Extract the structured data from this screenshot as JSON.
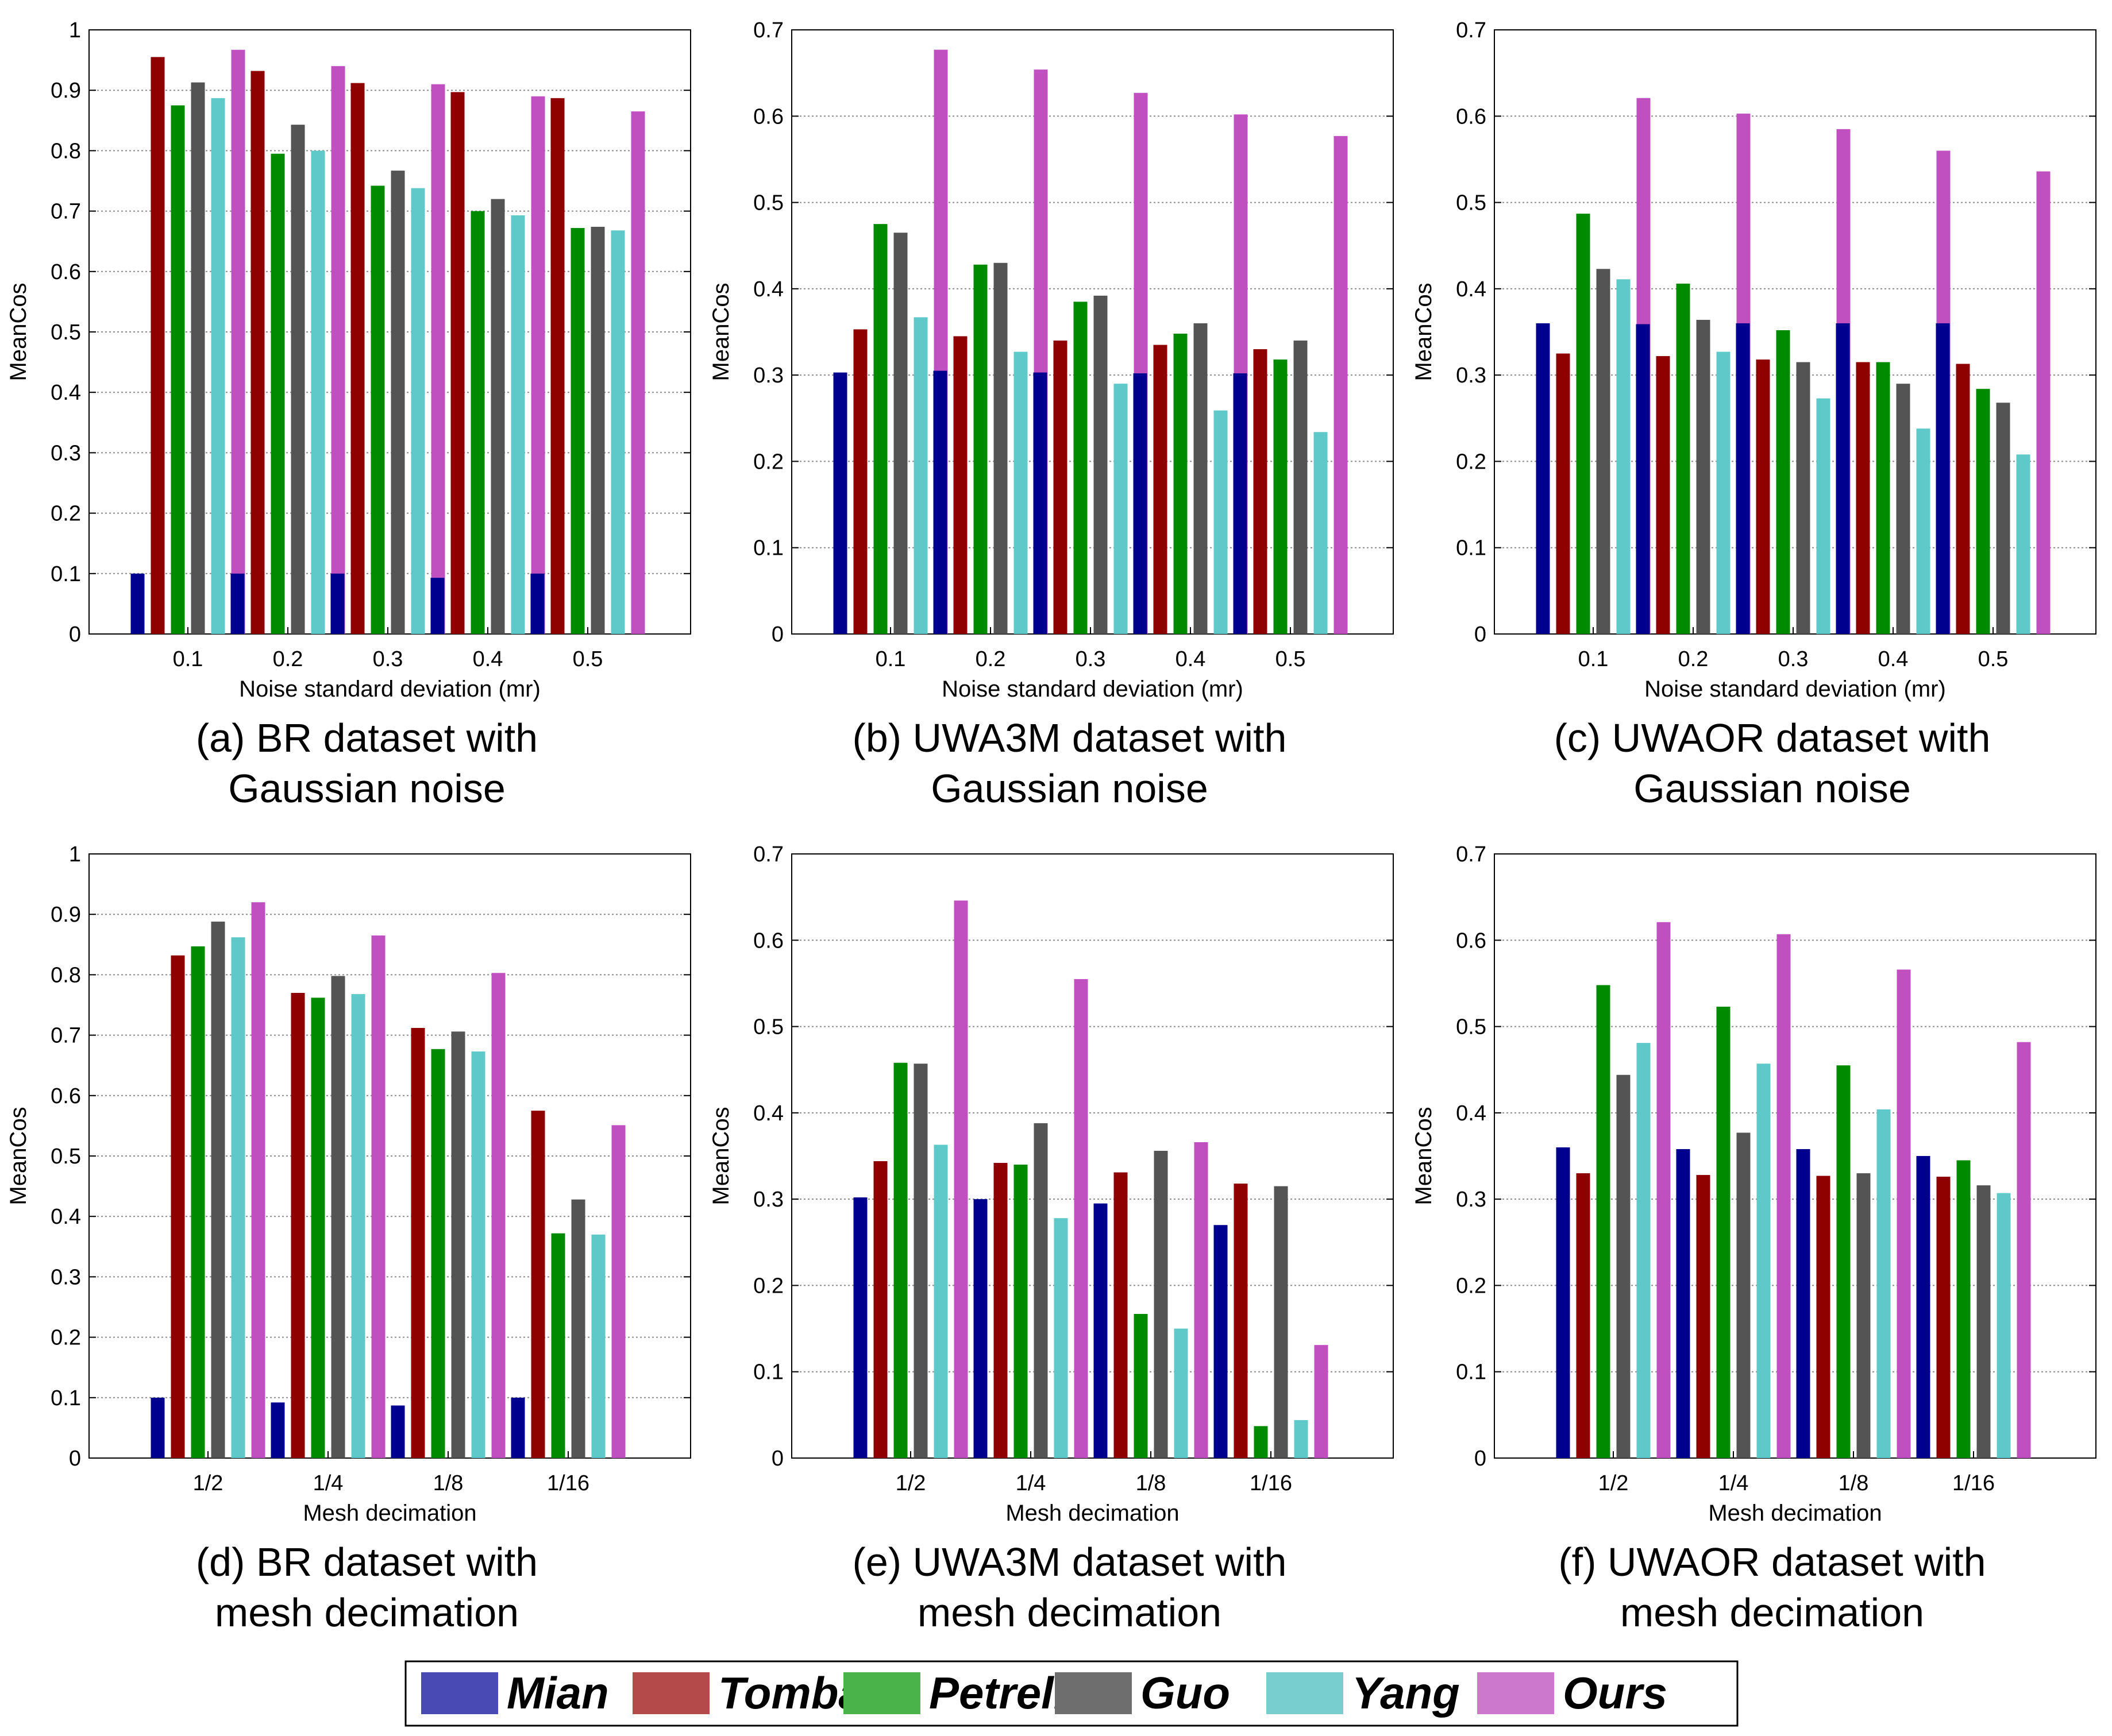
{
  "legend": [
    {
      "label": "Mian",
      "color": "#4a4ab4",
      "bar_color": "#00008f"
    },
    {
      "label": "Tombari",
      "color": "#b44a4a",
      "bar_color": "#8f0000"
    },
    {
      "label": "Petrelli",
      "color": "#4ab44a",
      "bar_color": "#008a00"
    },
    {
      "label": "Guo",
      "color": "#6e6e6e",
      "bar_color": "#545454"
    },
    {
      "label": "Yang",
      "color": "#78cece",
      "bar_color": "#5fc8c8"
    },
    {
      "label": "Ours",
      "color": "#cc78cc",
      "bar_color": "#c04fc0"
    }
  ],
  "chart_data": [
    {
      "type": "bar",
      "caption_lines": [
        "(a) BR dataset with",
        "Gaussian noise"
      ],
      "xlabel": "Noise standard deviation (mr)",
      "ylabel": "MeanCos",
      "ylim": [
        0,
        1
      ],
      "yticks": [
        "0",
        "0.1",
        "0.2",
        "0.3",
        "0.4",
        "0.5",
        "0.6",
        "0.7",
        "0.8",
        "0.9",
        "1"
      ],
      "grid": true,
      "categories": [
        "0.1",
        "0.2",
        "0.3",
        "0.4",
        "0.5"
      ],
      "series": [
        {
          "name": "Mian",
          "values": [
            0.1,
            0.1,
            0.1,
            0.093,
            0.1
          ]
        },
        {
          "name": "Tombari",
          "values": [
            0.955,
            0.932,
            0.912,
            0.897,
            0.887
          ]
        },
        {
          "name": "Petrelli",
          "values": [
            0.875,
            0.795,
            0.742,
            0.7,
            0.672
          ]
        },
        {
          "name": "Guo",
          "values": [
            0.913,
            0.843,
            0.767,
            0.72,
            0.674
          ]
        },
        {
          "name": "Yang",
          "values": [
            0.887,
            0.8,
            0.738,
            0.693,
            0.668
          ]
        },
        {
          "name": "Ours",
          "values": [
            0.967,
            0.94,
            0.91,
            0.89,
            0.865
          ]
        }
      ]
    },
    {
      "type": "bar",
      "caption_lines": [
        "(b) UWA3M dataset with",
        "Gaussian noise"
      ],
      "xlabel": "Noise standard deviation (mr)",
      "ylabel": "MeanCos",
      "ylim": [
        0,
        0.7
      ],
      "yticks": [
        "0",
        "0.1",
        "0.2",
        "0.3",
        "0.4",
        "0.5",
        "0.6",
        "0.7"
      ],
      "grid": true,
      "categories": [
        "0.1",
        "0.2",
        "0.3",
        "0.4",
        "0.5"
      ],
      "series": [
        {
          "name": "Mian",
          "values": [
            0.303,
            0.305,
            0.303,
            0.302,
            0.302
          ]
        },
        {
          "name": "Tombari",
          "values": [
            0.353,
            0.345,
            0.34,
            0.335,
            0.33
          ]
        },
        {
          "name": "Petrelli",
          "values": [
            0.475,
            0.428,
            0.385,
            0.348,
            0.318
          ]
        },
        {
          "name": "Guo",
          "values": [
            0.465,
            0.43,
            0.392,
            0.36,
            0.34
          ]
        },
        {
          "name": "Yang",
          "values": [
            0.367,
            0.327,
            0.29,
            0.259,
            0.234
          ]
        },
        {
          "name": "Ours",
          "values": [
            0.677,
            0.654,
            0.627,
            0.602,
            0.577
          ]
        }
      ]
    },
    {
      "type": "bar",
      "caption_lines": [
        "(c) UWAOR dataset with",
        "Gaussian noise"
      ],
      "xlabel": "Noise standard deviation (mr)",
      "ylabel": "MeanCos",
      "ylim": [
        0,
        0.7
      ],
      "yticks": [
        "0",
        "0.1",
        "0.2",
        "0.3",
        "0.4",
        "0.5",
        "0.6",
        "0.7"
      ],
      "grid": true,
      "categories": [
        "0.1",
        "0.2",
        "0.3",
        "0.4",
        "0.5"
      ],
      "series": [
        {
          "name": "Mian",
          "values": [
            0.36,
            0.359,
            0.36,
            0.36,
            0.36
          ]
        },
        {
          "name": "Tombari",
          "values": [
            0.325,
            0.322,
            0.318,
            0.315,
            0.313
          ]
        },
        {
          "name": "Petrelli",
          "values": [
            0.487,
            0.406,
            0.352,
            0.315,
            0.284
          ]
        },
        {
          "name": "Guo",
          "values": [
            0.423,
            0.364,
            0.315,
            0.29,
            0.268
          ]
        },
        {
          "name": "Yang",
          "values": [
            0.411,
            0.327,
            0.273,
            0.238,
            0.208
          ]
        },
        {
          "name": "Ours",
          "values": [
            0.621,
            0.603,
            0.585,
            0.56,
            0.536
          ]
        }
      ]
    },
    {
      "type": "bar",
      "caption_lines": [
        "(d) BR dataset with",
        "mesh decimation"
      ],
      "xlabel": "Mesh decimation",
      "ylabel": "MeanCos",
      "ylim": [
        0,
        1
      ],
      "yticks": [
        "0",
        "0.1",
        "0.2",
        "0.3",
        "0.4",
        "0.5",
        "0.6",
        "0.7",
        "0.8",
        "0.9",
        "1"
      ],
      "grid": true,
      "categories": [
        "1/2",
        "1/4",
        "1/8",
        "1/16"
      ],
      "series": [
        {
          "name": "Mian",
          "values": [
            0.1,
            0.092,
            0.087,
            0.1
          ]
        },
        {
          "name": "Tombari",
          "values": [
            0.832,
            0.77,
            0.712,
            0.575
          ]
        },
        {
          "name": "Petrelli",
          "values": [
            0.847,
            0.762,
            0.677,
            0.372
          ]
        },
        {
          "name": "Guo",
          "values": [
            0.888,
            0.798,
            0.706,
            0.428
          ]
        },
        {
          "name": "Yang",
          "values": [
            0.862,
            0.768,
            0.673,
            0.37
          ]
        },
        {
          "name": "Ours",
          "values": [
            0.92,
            0.865,
            0.803,
            0.551
          ]
        }
      ]
    },
    {
      "type": "bar",
      "caption_lines": [
        "(e) UWA3M dataset with",
        "mesh decimation"
      ],
      "xlabel": "Mesh decimation",
      "ylabel": "MeanCos",
      "ylim": [
        0,
        0.7
      ],
      "yticks": [
        "0",
        "0.1",
        "0.2",
        "0.3",
        "0.4",
        "0.5",
        "0.6",
        "0.7"
      ],
      "grid": true,
      "categories": [
        "1/2",
        "1/4",
        "1/8",
        "1/16"
      ],
      "series": [
        {
          "name": "Mian",
          "values": [
            0.302,
            0.3,
            0.295,
            0.27
          ]
        },
        {
          "name": "Tombari",
          "values": [
            0.344,
            0.342,
            0.331,
            0.318
          ]
        },
        {
          "name": "Petrelli",
          "values": [
            0.458,
            0.34,
            0.167,
            0.037
          ]
        },
        {
          "name": "Guo",
          "values": [
            0.457,
            0.388,
            0.356,
            0.315
          ]
        },
        {
          "name": "Yang",
          "values": [
            0.363,
            0.278,
            0.15,
            0.044
          ]
        },
        {
          "name": "Ours",
          "values": [
            0.646,
            0.555,
            0.366,
            0.131
          ]
        }
      ]
    },
    {
      "type": "bar",
      "caption_lines": [
        "(f) UWAOR dataset with",
        "mesh decimation"
      ],
      "xlabel": "Mesh decimation",
      "ylabel": "MeanCos",
      "ylim": [
        0,
        0.7
      ],
      "yticks": [
        "0",
        "0.1",
        "0.2",
        "0.3",
        "0.4",
        "0.5",
        "0.6",
        "0.7"
      ],
      "grid": true,
      "categories": [
        "1/2",
        "1/4",
        "1/8",
        "1/16"
      ],
      "series": [
        {
          "name": "Mian",
          "values": [
            0.36,
            0.358,
            0.358,
            0.35
          ]
        },
        {
          "name": "Tombari",
          "values": [
            0.33,
            0.328,
            0.327,
            0.326
          ]
        },
        {
          "name": "Petrelli",
          "values": [
            0.548,
            0.523,
            0.455,
            0.345
          ]
        },
        {
          "name": "Guo",
          "values": [
            0.444,
            0.377,
            0.33,
            0.316
          ]
        },
        {
          "name": "Yang",
          "values": [
            0.481,
            0.457,
            0.404,
            0.307
          ]
        },
        {
          "name": "Ours",
          "values": [
            0.621,
            0.607,
            0.566,
            0.482
          ]
        }
      ]
    }
  ]
}
